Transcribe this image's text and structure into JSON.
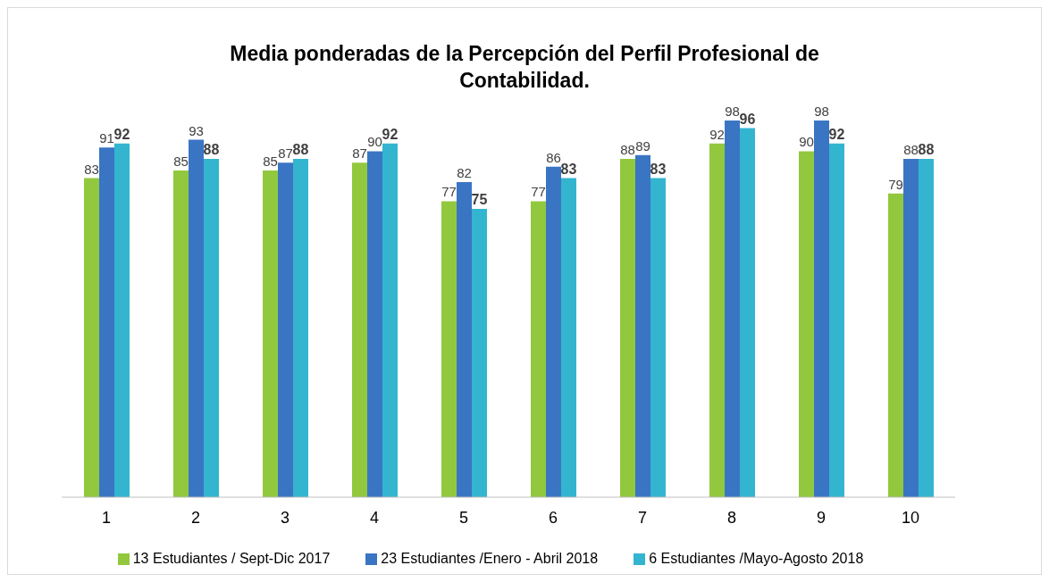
{
  "chart_data": {
    "type": "bar",
    "title": "Media ponderadas de la Percepción del Perfil Profesional de Contabilidad.",
    "categories": [
      "1",
      "2",
      "3",
      "4",
      "5",
      "6",
      "7",
      "8",
      "9",
      "10"
    ],
    "series": [
      {
        "name": "13 Estudiantes / Sept-Dic 2017",
        "color": "#92c83e",
        "values": [
          83,
          85,
          85,
          87,
          77,
          77,
          88,
          92,
          90,
          79
        ]
      },
      {
        "name": "23 Estudiantes /Enero - Abril 2018",
        "color": "#3a75c4",
        "values": [
          91,
          93,
          87,
          90,
          82,
          86,
          89,
          98,
          98,
          88
        ]
      },
      {
        "name": "6 Estudiantes /Mayo-Agosto 2018",
        "color": "#33b5d0",
        "values": [
          92,
          88,
          88,
          92,
          75,
          83,
          83,
          96,
          92,
          88
        ]
      }
    ],
    "data_labels": true,
    "grid": false,
    "legend": "bottom"
  }
}
